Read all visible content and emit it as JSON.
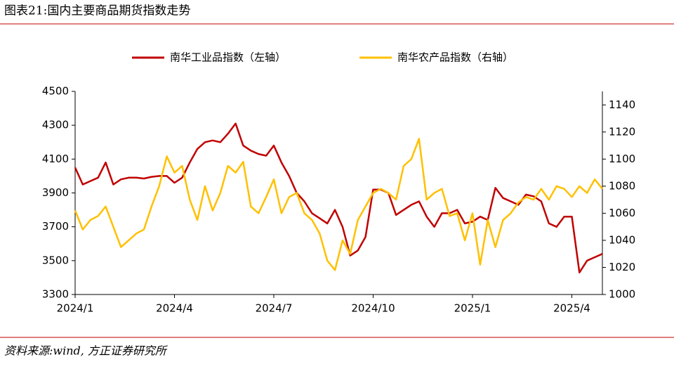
{
  "title": "图表21:国内主要商品期货指数走势",
  "source": "资料来源:wind, 方正证券研究所",
  "chart_data": {
    "type": "line",
    "categories": [
      "2024/1",
      null,
      null,
      null,
      null,
      null,
      null,
      null,
      null,
      null,
      null,
      null,
      null,
      "2024/4",
      null,
      null,
      null,
      null,
      null,
      null,
      null,
      null,
      null,
      null,
      null,
      null,
      "2024/7",
      null,
      null,
      null,
      null,
      null,
      null,
      null,
      null,
      null,
      null,
      null,
      null,
      "2024/10",
      null,
      null,
      null,
      null,
      null,
      null,
      null,
      null,
      null,
      null,
      null,
      null,
      "2025/1",
      null,
      null,
      null,
      null,
      null,
      null,
      null,
      null,
      null,
      null,
      null,
      null,
      "2025/4",
      null,
      null,
      null,
      null
    ],
    "series": [
      {
        "name": "南华工业品指数（左轴）",
        "color": "#c00000",
        "axis": "y",
        "values": [
          4050,
          3950,
          3970,
          3990,
          4080,
          3950,
          3980,
          3990,
          3990,
          3985,
          3995,
          4000,
          4000,
          3960,
          3990,
          4080,
          4160,
          4200,
          4210,
          4200,
          4250,
          4310,
          4180,
          4150,
          4130,
          4120,
          4180,
          4080,
          4000,
          3900,
          3850,
          3780,
          3750,
          3720,
          3800,
          3700,
          3530,
          3560,
          3640,
          3920,
          3920,
          3900,
          3770,
          3800,
          3830,
          3850,
          3760,
          3700,
          3780,
          3780,
          3800,
          3720,
          3730,
          3760,
          3740,
          3930,
          3870,
          3850,
          3830,
          3890,
          3880,
          3850,
          3720,
          3700,
          3760,
          3760,
          3430,
          3500,
          3520,
          3540
        ]
      },
      {
        "name": "南华农产品指数（右轴）",
        "color": "#ffc000",
        "axis": "y2",
        "values": [
          1062,
          1048,
          1055,
          1058,
          1065,
          1050,
          1035,
          1040,
          1045,
          1048,
          1065,
          1080,
          1102,
          1090,
          1095,
          1070,
          1055,
          1080,
          1062,
          1075,
          1095,
          1090,
          1098,
          1065,
          1060,
          1072,
          1085,
          1060,
          1072,
          1075,
          1060,
          1055,
          1045,
          1025,
          1018,
          1040,
          1030,
          1055,
          1065,
          1075,
          1078,
          1075,
          1070,
          1095,
          1100,
          1115,
          1070,
          1075,
          1078,
          1058,
          1060,
          1040,
          1060,
          1022,
          1055,
          1035,
          1055,
          1060,
          1068,
          1072,
          1070,
          1078,
          1070,
          1080,
          1078,
          1072,
          1080,
          1075,
          1085,
          1078
        ]
      }
    ],
    "ylim": [
      3300,
      4500
    ],
    "yticks": [
      3300,
      3500,
      3700,
      3900,
      4100,
      4300,
      4500
    ],
    "y2lim": [
      1000,
      1150
    ],
    "y2ticks": [
      1000,
      1020,
      1040,
      1060,
      1080,
      1100,
      1120,
      1140
    ]
  }
}
